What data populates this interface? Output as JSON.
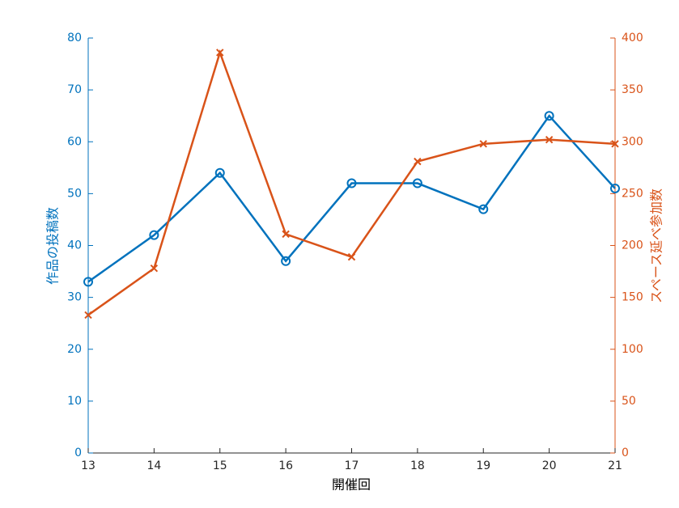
{
  "chart_data": {
    "type": "line",
    "x": [
      13,
      14,
      15,
      16,
      17,
      18,
      19,
      20,
      21
    ],
    "xlim": [
      13,
      21
    ],
    "xticks": [
      13,
      14,
      15,
      16,
      17,
      18,
      19,
      20,
      21
    ],
    "xlabel": "開催回",
    "ylabel": "作品の投稿数",
    "ylim": [
      0,
      80
    ],
    "yticks": [
      0,
      10,
      20,
      30,
      40,
      50,
      60,
      70,
      80
    ],
    "ycolor": "#0072bd",
    "y2label": "スペース延べ参加数",
    "y2lim": [
      0,
      400
    ],
    "y2ticks": [
      0,
      50,
      100,
      150,
      200,
      250,
      300,
      350,
      400
    ],
    "y2color": "#d95319",
    "series": [
      {
        "color": "#0072bd",
        "marker": "circle",
        "values": [
          33,
          42,
          54,
          37,
          52,
          52,
          47,
          65,
          51
        ]
      },
      {
        "color": "#d95319",
        "marker": "x",
        "axis": "y2",
        "values": [
          133,
          178,
          386,
          211,
          189,
          281,
          298,
          302,
          298
        ]
      }
    ]
  }
}
